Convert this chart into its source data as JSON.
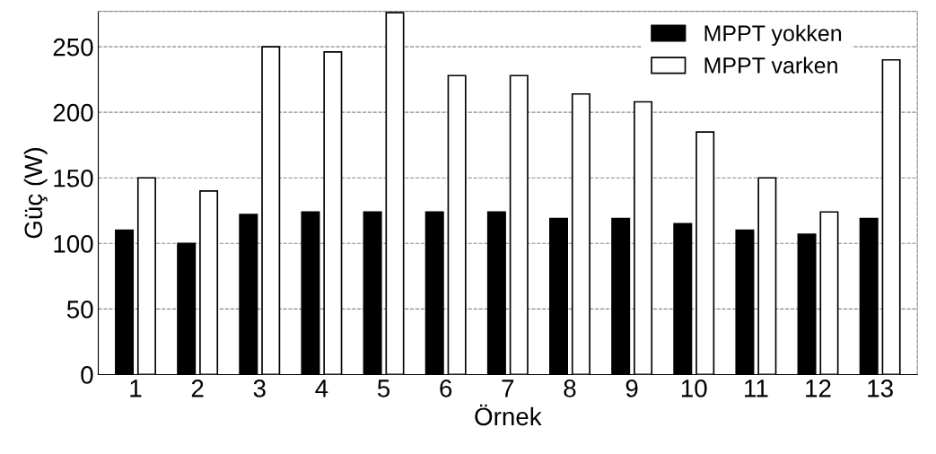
{
  "chart_data": {
    "type": "bar",
    "xlabel": "Örnek",
    "ylabel": "Güç (W)",
    "categories": [
      "1",
      "2",
      "3",
      "4",
      "5",
      "6",
      "7",
      "8",
      "9",
      "10",
      "11",
      "12",
      "13"
    ],
    "series": [
      {
        "name": "MPPT yokken",
        "color": "#000000",
        "values": [
          110,
          100,
          122,
          124,
          124,
          124,
          124,
          119,
          119,
          115,
          110,
          107,
          119
        ]
      },
      {
        "name": "MPPT varken",
        "color": "#ffffff",
        "values": [
          150,
          140,
          250,
          246,
          276,
          228,
          228,
          214,
          208,
          185,
          150,
          124,
          240
        ]
      }
    ],
    "ylim": [
      0,
      277
    ],
    "yticks": [
      0,
      50,
      100,
      150,
      200,
      250
    ],
    "grid": "y",
    "legend": "top right"
  }
}
